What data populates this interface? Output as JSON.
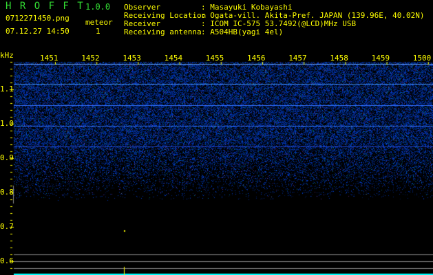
{
  "header": {
    "app_name": "H R O F F T",
    "version": "1.0.0",
    "filename": "0712271450.png",
    "datetime": "07.12.27 14:50",
    "meteor_label": "meteor",
    "meteor_count": "1",
    "info": [
      {
        "label": "Observer",
        "value": ": Masayuki Kobayashi"
      },
      {
        "label": "Receiving Location",
        "value": ": Ogata-vill. Akita-Pref. JAPAN (139.96E, 40.02N)"
      },
      {
        "label": "Receiver",
        "value": ": ICOM IC-575 53.7492(@LCD)MHz USB"
      },
      {
        "label": "Receiving antenna",
        "value": ": A504HB(yagi 4el)"
      }
    ]
  },
  "spectrogram": {
    "y_unit": "kHz",
    "y_ticks": [
      "1.1",
      "1.0",
      "0.9",
      "0.8",
      "0.7",
      "0.6"
    ],
    "x_ticks": [
      "1451",
      "1452",
      "1453",
      "1454",
      "1455",
      "1456",
      "1457",
      "1458",
      "1459",
      "1500"
    ],
    "colors": {
      "text": "#ffff00",
      "title": "#33dd33",
      "noise": "#1a2fd0",
      "carrier": "#4080ff",
      "marker": "#ffff00",
      "baseline": "#00ffff"
    }
  }
}
